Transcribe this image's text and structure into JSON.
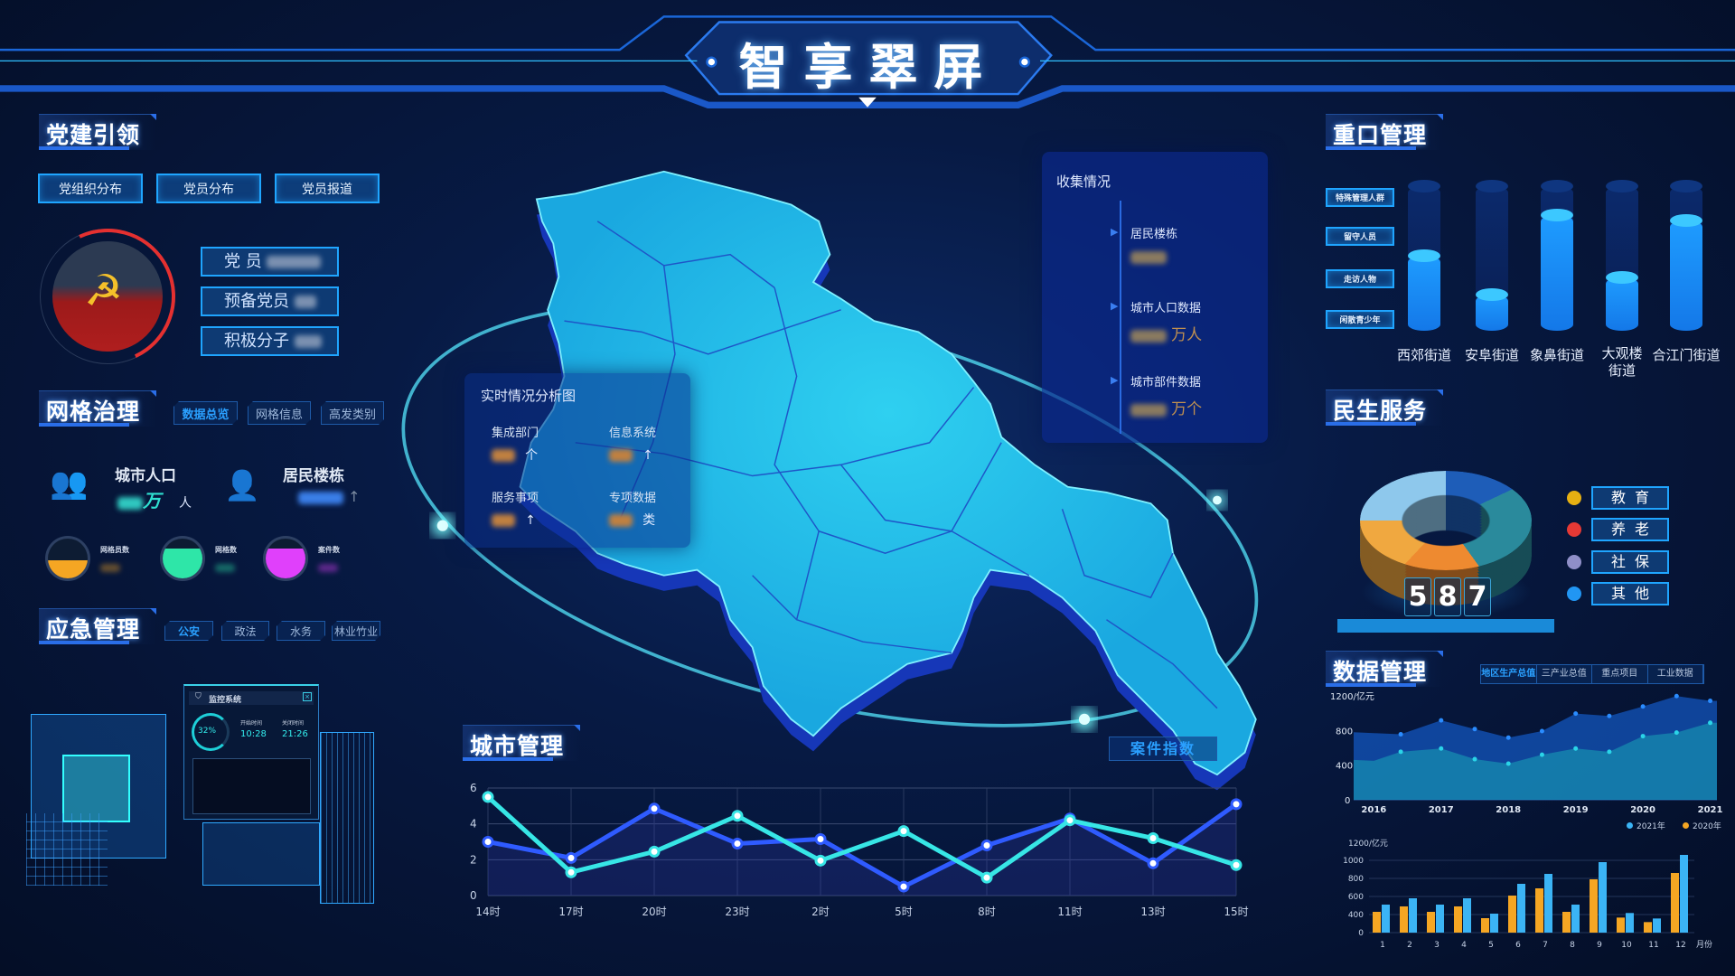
{
  "title": "智享翠屏",
  "party": {
    "header": "党建引领",
    "buttons": [
      "党组织分布",
      "党员分布",
      "党员报道"
    ],
    "stats": [
      "党 员",
      "预备党员",
      "积极分子"
    ]
  },
  "grid": {
    "header": "网格治理",
    "tabs": [
      "数据总览",
      "网格信息",
      "高发类别"
    ],
    "population_label": "城市人口",
    "population_unit1": "万",
    "population_unit2": "人",
    "buildings_label": "居民楼栋",
    "buildings_arrow": "↑",
    "balls": [
      {
        "label": "网格员数",
        "color": "#f5a623",
        "level": 0.45
      },
      {
        "label": "网格数",
        "color": "#2ee6a8",
        "level": 0.75
      },
      {
        "label": "案件数",
        "color": "#e040fb",
        "level": 0.75
      }
    ]
  },
  "emergency": {
    "header": "应急管理",
    "tabs": [
      "公安",
      "政法",
      "水务",
      "林业竹业"
    ],
    "popup": {
      "title": "监控系统",
      "percent": "32%",
      "percent_value": 32,
      "start_label": "开始时间",
      "start_time": "10:28",
      "end_label": "关闭时间",
      "end_time": "21:26"
    }
  },
  "realtime": {
    "title": "实时情况分析图",
    "items": [
      {
        "label": "集成部门",
        "unit": "个"
      },
      {
        "label": "信息系统",
        "unit": "↑"
      },
      {
        "label": "服务事项",
        "unit": "↑"
      },
      {
        "label": "专项数据",
        "unit": "类"
      }
    ]
  },
  "collect": {
    "title": "收集情况",
    "items": [
      {
        "label": "居民楼栋",
        "unit": ""
      },
      {
        "label": "城市人口数据",
        "unit": "万人"
      },
      {
        "label": "城市部件数据",
        "unit": "万个"
      }
    ]
  },
  "case_index": "案件指数",
  "city": {
    "header": "城市管理"
  },
  "key_pop": {
    "header": "重口管理",
    "labels": [
      "特殊管理人群",
      "留守人员",
      "走访人物",
      "闲散青少年"
    ],
    "streets": [
      "西郊街道",
      "安阜街道",
      "象鼻街道",
      "大观楼街道",
      "合江门街道"
    ],
    "levels": [
      0.52,
      0.25,
      0.8,
      0.37,
      0.76
    ]
  },
  "livelihood": {
    "header": "民生服务",
    "counter": [
      "5",
      "8",
      "7"
    ],
    "legend": [
      {
        "label": "教育",
        "color": "#e6b012"
      },
      {
        "label": "养老",
        "color": "#e53935"
      },
      {
        "label": "社保",
        "color": "#8f8fc8"
      },
      {
        "label": "其他",
        "color": "#2196f3"
      }
    ]
  },
  "datamgmt": {
    "header": "数据管理",
    "tabs": [
      "地区生产总值",
      "三产业总值",
      "重点项目",
      "工业数据"
    ]
  },
  "chart_data": [
    {
      "type": "line",
      "categories": [
        "14时",
        "17时",
        "20时",
        "23时",
        "2时",
        "5时",
        "8时",
        "11时",
        "13时",
        "15时"
      ],
      "ylim": [
        0,
        6
      ],
      "yticks": [
        0,
        2,
        4,
        6
      ],
      "grid": true,
      "series": [
        {
          "color": "#2f5bff",
          "values": [
            3.0,
            2.1,
            4.85,
            2.9,
            3.15,
            0.5,
            2.8,
            4.3,
            1.8,
            5.1
          ]
        },
        {
          "color": "#37e6e6",
          "values": [
            5.5,
            1.3,
            2.45,
            4.45,
            1.95,
            3.6,
            1.0,
            4.2,
            3.2,
            1.7
          ]
        }
      ]
    },
    {
      "type": "area",
      "ylabel": "1200/亿元",
      "yticks": [
        0,
        400,
        800
      ],
      "ylim": [
        0,
        1200
      ],
      "xticks": [
        "2016",
        "2017",
        "2018",
        "2019",
        "2020",
        "2021"
      ],
      "x": [
        2016,
        2016.4,
        2017,
        2017.5,
        2018,
        2018.5,
        2019,
        2019.5,
        2020,
        2020.5,
        2021
      ],
      "series": [
        {
          "color": "#1565e0",
          "values": [
            770,
            756,
            917,
            817,
            718,
            793,
            995,
            968,
            1077,
            1197,
            1142
          ]
        },
        {
          "color": "#1aa6b8",
          "values": [
            450,
            554,
            592,
            469,
            417,
            520,
            592,
            554,
            735,
            776,
            889
          ]
        }
      ]
    },
    {
      "type": "bar",
      "ylabel": "1200/亿元",
      "yticks": [
        0,
        400,
        600,
        800,
        1000
      ],
      "xlabel": "月份",
      "categories": [
        "1",
        "2",
        "3",
        "4",
        "5",
        "6",
        "7",
        "8",
        "9",
        "10",
        "11",
        "12"
      ],
      "legend": "top-right",
      "series": [
        {
          "name": "2021年",
          "color": "#3bb4f5",
          "values": [
            510,
            580,
            510,
            580,
            410,
            740,
            850,
            510,
            980,
            417,
            313,
            1060
          ]
        },
        {
          "name": "2020年",
          "color": "#f5a623",
          "values": [
            430,
            490,
            430,
            490,
            320,
            610,
            690,
            430,
            790,
            333,
            233,
            860
          ]
        }
      ]
    }
  ]
}
